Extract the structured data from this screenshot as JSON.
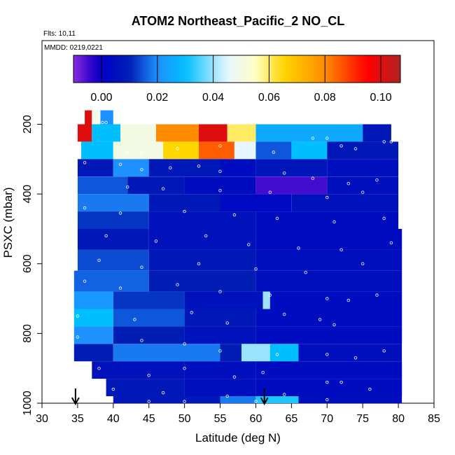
{
  "chart_data": {
    "type": "heatmap",
    "title": "ATOM2 Northeast_Pacific_2 NO_CL",
    "subtitle_flights": "Flts: 10,11",
    "subtitle_dates": "MMDD: 0219,0221",
    "xlabel": "Latitude (deg N)",
    "ylabel": "PSXC (mbar)",
    "xlim": [
      30,
      85
    ],
    "ylim": [
      1000,
      0
    ],
    "x_ticks": [
      30,
      35,
      40,
      45,
      50,
      55,
      60,
      65,
      70,
      75,
      80,
      85
    ],
    "y_ticks": [
      200,
      400,
      600,
      800,
      1000
    ],
    "colorbar": {
      "range": [
        -0.01,
        0.107
      ],
      "ticks": [
        0.0,
        0.02,
        0.04,
        0.06,
        0.08,
        0.1
      ],
      "tick_labels": [
        "0.00",
        "0.02",
        "0.04",
        "0.06",
        "0.08",
        "0.10"
      ],
      "colors": [
        "#8a2be2",
        "#0000cd",
        "#0a0aa8",
        "#1e90ff",
        "#00bfff",
        "#ffffff",
        "#ffd700",
        "#ff8c00",
        "#ff0000",
        "#b22222"
      ]
    },
    "arrow_markers_latitude": [
      34.7,
      61.2
    ],
    "layers": [
      {
        "p_top": 160,
        "p_bot": 200,
        "segments": [
          [
            36,
            37,
            0.1
          ],
          [
            37,
            38.2,
            0.05
          ],
          [
            38.2,
            40,
            0.02
          ]
        ]
      },
      {
        "p_top": 200,
        "p_bot": 250,
        "segments": [
          [
            35,
            37,
            0.1
          ],
          [
            37,
            41,
            0.03
          ],
          [
            41,
            46,
            0.05
          ],
          [
            46,
            52,
            0.08
          ],
          [
            52,
            56,
            0.1
          ],
          [
            56,
            60,
            0.06
          ],
          [
            60,
            75,
            0.025
          ],
          [
            75,
            79,
            0.008
          ]
        ]
      },
      {
        "p_top": 250,
        "p_bot": 300,
        "segments": [
          [
            35.5,
            40,
            0.03
          ],
          [
            40,
            47,
            0.05
          ],
          [
            47,
            52,
            0.065
          ],
          [
            52,
            57,
            0.085
          ],
          [
            57,
            60,
            0.045
          ],
          [
            60,
            65,
            0.015
          ],
          [
            65,
            70,
            0.03
          ],
          [
            70,
            80,
            0.008
          ]
        ]
      },
      {
        "p_top": 300,
        "p_bot": 350,
        "segments": [
          [
            35,
            40,
            0.008
          ],
          [
            40,
            45,
            0.02
          ],
          [
            45,
            55,
            0.008
          ],
          [
            55,
            60,
            0.004
          ],
          [
            60,
            70,
            0.007
          ],
          [
            70,
            80,
            0.005
          ]
        ]
      },
      {
        "p_top": 350,
        "p_bot": 400,
        "segments": [
          [
            35,
            42,
            0.015
          ],
          [
            42,
            50,
            0.008
          ],
          [
            50,
            60,
            0.004
          ],
          [
            60,
            70,
            -0.005
          ],
          [
            70,
            80,
            0.005
          ]
        ]
      },
      {
        "p_top": 400,
        "p_bot": 450,
        "segments": [
          [
            35,
            45,
            0.018
          ],
          [
            45,
            55,
            0.008
          ],
          [
            55,
            65,
            0.003
          ],
          [
            65,
            80,
            0.006
          ]
        ]
      },
      {
        "p_top": 450,
        "p_bot": 500,
        "segments": [
          [
            35,
            45,
            0.012
          ],
          [
            45,
            60,
            0.006
          ],
          [
            60,
            80,
            0.004
          ]
        ]
      },
      {
        "p_top": 500,
        "p_bot": 560,
        "segments": [
          [
            35,
            45,
            0.008
          ],
          [
            45,
            60,
            0.006
          ],
          [
            60,
            80.5,
            0.004
          ]
        ]
      },
      {
        "p_top": 560,
        "p_bot": 620,
        "segments": [
          [
            35,
            45,
            0.014
          ],
          [
            45,
            60,
            0.008
          ],
          [
            60,
            80.5,
            0.005
          ]
        ]
      },
      {
        "p_top": 620,
        "p_bot": 680,
        "segments": [
          [
            34.5,
            45,
            0.016
          ],
          [
            45,
            60,
            0.01
          ],
          [
            60,
            80.5,
            0.005
          ]
        ]
      },
      {
        "p_top": 680,
        "p_bot": 730,
        "segments": [
          [
            34.5,
            40,
            0.022
          ],
          [
            40,
            50,
            0.012
          ],
          [
            50,
            61,
            0.006
          ],
          [
            61,
            62,
            0.04
          ],
          [
            62,
            80.5,
            0.004
          ]
        ]
      },
      {
        "p_top": 730,
        "p_bot": 780,
        "segments": [
          [
            34.5,
            40,
            0.03
          ],
          [
            40,
            50,
            0.015
          ],
          [
            50,
            60,
            0.008
          ],
          [
            60,
            80.5,
            0.004
          ]
        ]
      },
      {
        "p_top": 780,
        "p_bot": 830,
        "segments": [
          [
            34.5,
            40,
            0.02
          ],
          [
            40,
            50,
            0.01
          ],
          [
            50,
            60,
            0.006
          ],
          [
            60,
            80.5,
            0.004
          ]
        ]
      },
      {
        "p_top": 830,
        "p_bot": 880,
        "segments": [
          [
            34.5,
            40,
            0.01
          ],
          [
            40,
            55,
            0.018
          ],
          [
            55,
            58,
            0.01
          ],
          [
            58,
            62,
            0.04
          ],
          [
            62,
            66,
            0.03
          ],
          [
            66,
            80.5,
            0.005
          ]
        ]
      },
      {
        "p_top": 880,
        "p_bot": 930,
        "segments": [
          [
            37,
            50,
            0.006
          ],
          [
            50,
            60,
            0.005
          ],
          [
            60,
            80.5,
            0.004
          ]
        ]
      },
      {
        "p_top": 930,
        "p_bot": 980,
        "segments": [
          [
            39,
            50,
            0.008
          ],
          [
            50,
            60,
            0.005
          ],
          [
            60,
            80.5,
            0.004
          ]
        ]
      },
      {
        "p_top": 980,
        "p_bot": 1000,
        "segments": [
          [
            40,
            55,
            0.008
          ],
          [
            55,
            60,
            0.018
          ],
          [
            60,
            66,
            0.032
          ],
          [
            66,
            80.5,
            0.005
          ]
        ]
      }
    ],
    "sample_points": [
      [
        37.5,
        195
      ],
      [
        38.5,
        195
      ],
      [
        39,
        195
      ],
      [
        42,
        280
      ],
      [
        44,
        280
      ],
      [
        49,
        270
      ],
      [
        55,
        262
      ],
      [
        57.5,
        268
      ],
      [
        62.5,
        280
      ],
      [
        68,
        240
      ],
      [
        70,
        240
      ],
      [
        72,
        262
      ],
      [
        74,
        270
      ],
      [
        78,
        250
      ],
      [
        79,
        250
      ],
      [
        36,
        310
      ],
      [
        41,
        315
      ],
      [
        44,
        330
      ],
      [
        48,
        325
      ],
      [
        52,
        320
      ],
      [
        55,
        335
      ],
      [
        64,
        340
      ],
      [
        68,
        355
      ],
      [
        73,
        370
      ],
      [
        77,
        360
      ],
      [
        42,
        380
      ],
      [
        47,
        385
      ],
      [
        55,
        390
      ],
      [
        62,
        395
      ],
      [
        70,
        410
      ],
      [
        75,
        395
      ],
      [
        36,
        440
      ],
      [
        41,
        455
      ],
      [
        50,
        450
      ],
      [
        57,
        460
      ],
      [
        63,
        470
      ],
      [
        71,
        480
      ],
      [
        78,
        470
      ],
      [
        39,
        520
      ],
      [
        46,
        535
      ],
      [
        53,
        520
      ],
      [
        59,
        545
      ],
      [
        66,
        555
      ],
      [
        72,
        560
      ],
      [
        79,
        540
      ],
      [
        38,
        590
      ],
      [
        44,
        610
      ],
      [
        52,
        600
      ],
      [
        60,
        615
      ],
      [
        67,
        625
      ],
      [
        75,
        600
      ],
      [
        36,
        650
      ],
      [
        41,
        670
      ],
      [
        49,
        660
      ],
      [
        55,
        680
      ],
      [
        62,
        690
      ],
      [
        70,
        700
      ],
      [
        73,
        705
      ],
      [
        77,
        690
      ],
      [
        35,
        750
      ],
      [
        43,
        760
      ],
      [
        51,
        740
      ],
      [
        56,
        770
      ],
      [
        64,
        745
      ],
      [
        69,
        760
      ],
      [
        71,
        775
      ],
      [
        35,
        810
      ],
      [
        44,
        820
      ],
      [
        50,
        830
      ],
      [
        55,
        850
      ],
      [
        63,
        860
      ],
      [
        70,
        860
      ],
      [
        74,
        870
      ],
      [
        78,
        850
      ],
      [
        38,
        900
      ],
      [
        45,
        920
      ],
      [
        50,
        900
      ],
      [
        57,
        925
      ],
      [
        61,
        912
      ],
      [
        70,
        940
      ],
      [
        72,
        940
      ],
      [
        40,
        960
      ],
      [
        47,
        970
      ],
      [
        56,
        980
      ],
      [
        64,
        975
      ],
      [
        70,
        990
      ],
      [
        76,
        960
      ],
      [
        45,
        995
      ],
      [
        50,
        995
      ],
      [
        60,
        995
      ]
    ]
  }
}
